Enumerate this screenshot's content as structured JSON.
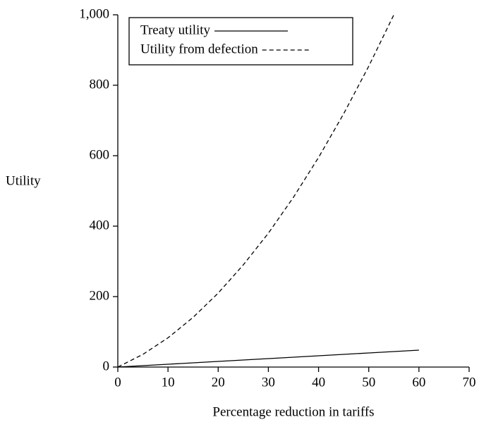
{
  "chart_data": {
    "type": "line",
    "x_label": "Percentage reduction in tariffs",
    "y_label": "Utility",
    "xlim": [
      0,
      70
    ],
    "xticks": [
      0,
      10,
      20,
      30,
      40,
      50,
      60,
      70
    ],
    "ylim": [
      0,
      1000
    ],
    "yticks": [
      0,
      200,
      400,
      600,
      800,
      {
        "value": 1000,
        "label": "1,000"
      }
    ],
    "legend": "top-left",
    "series": [
      {
        "name": "Treaty utility",
        "color": "#000000",
        "dash": "solid",
        "x": [
          0,
          10,
          20,
          30,
          40,
          50,
          60
        ],
        "values": [
          0,
          8,
          16,
          24,
          32,
          40,
          48
        ]
      },
      {
        "name": "Utility from defection",
        "color": "#000000",
        "dash": "dashed",
        "x": [
          0,
          5,
          10,
          15,
          20,
          25,
          30,
          35,
          40,
          45,
          50,
          55
        ],
        "values": [
          0,
          36,
          83,
          141,
          210,
          290,
          380,
          482,
          595,
          719,
          854,
          1000
        ]
      }
    ]
  }
}
